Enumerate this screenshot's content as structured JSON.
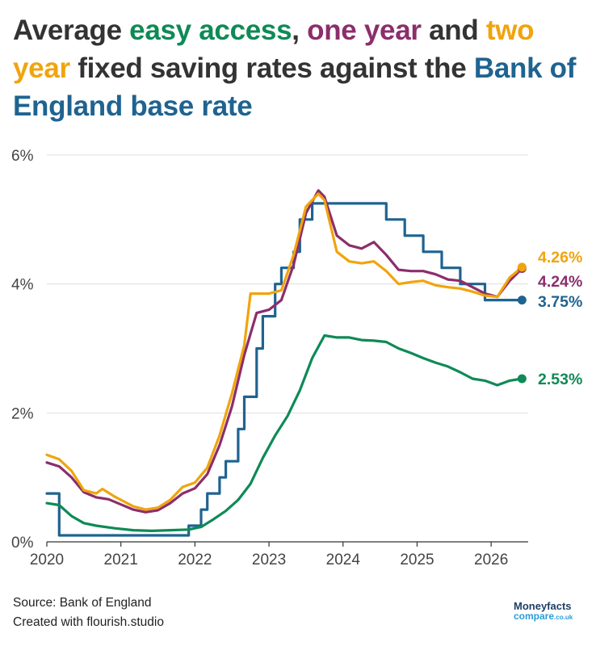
{
  "title": {
    "p1": "Average ",
    "easy": "easy access",
    "p2": ", ",
    "one": "one year",
    "p3": " and ",
    "two": "two year",
    "p4": " fixed saving rates against the ",
    "boe": "Bank of England base rate"
  },
  "colors": {
    "easy": "#0f8a56",
    "one": "#8c2e6b",
    "two": "#f0a40e",
    "boe": "#1f6390",
    "text": "#333333",
    "grid": "#dddddd"
  },
  "chart_data": {
    "type": "line",
    "x_ticks": [
      "2020",
      "2021",
      "2022",
      "2023",
      "2024",
      "2025",
      "2026"
    ],
    "y_ticks": [
      "0%",
      "2%",
      "4%",
      "6%"
    ],
    "xlim": [
      "2020-01",
      "2026-06"
    ],
    "ylim": [
      0,
      6
    ],
    "series": [
      {
        "key": "boe",
        "step": true,
        "end_label": "3.75%",
        "points": [
          [
            "2020-01",
            0.75
          ],
          [
            "2020-03",
            0.75
          ],
          [
            "2020-03",
            0.25
          ],
          [
            "2020-03",
            0.1
          ],
          [
            "2021-12",
            0.1
          ],
          [
            "2021-12",
            0.25
          ],
          [
            "2022-02",
            0.25
          ],
          [
            "2022-02",
            0.5
          ],
          [
            "2022-03",
            0.5
          ],
          [
            "2022-03",
            0.75
          ],
          [
            "2022-05",
            0.75
          ],
          [
            "2022-05",
            1.0
          ],
          [
            "2022-06",
            1.0
          ],
          [
            "2022-06",
            1.25
          ],
          [
            "2022-08",
            1.25
          ],
          [
            "2022-08",
            1.75
          ],
          [
            "2022-09",
            1.75
          ],
          [
            "2022-09",
            2.25
          ],
          [
            "2022-11",
            2.25
          ],
          [
            "2022-11",
            3.0
          ],
          [
            "2022-12",
            3.0
          ],
          [
            "2022-12",
            3.5
          ],
          [
            "2023-02",
            3.5
          ],
          [
            "2023-02",
            4.0
          ],
          [
            "2023-03",
            4.0
          ],
          [
            "2023-03",
            4.25
          ],
          [
            "2023-05",
            4.25
          ],
          [
            "2023-05",
            4.5
          ],
          [
            "2023-06",
            4.5
          ],
          [
            "2023-06",
            5.0
          ],
          [
            "2023-08",
            5.0
          ],
          [
            "2023-08",
            5.25
          ],
          [
            "2024-08",
            5.25
          ],
          [
            "2024-08",
            5.0
          ],
          [
            "2024-11",
            5.0
          ],
          [
            "2024-11",
            4.75
          ],
          [
            "2025-02",
            4.75
          ],
          [
            "2025-02",
            4.5
          ],
          [
            "2025-05",
            4.5
          ],
          [
            "2025-05",
            4.25
          ],
          [
            "2025-08",
            4.25
          ],
          [
            "2025-08",
            4.0
          ],
          [
            "2025-12",
            4.0
          ],
          [
            "2025-12",
            3.75
          ],
          [
            "2026-06",
            3.75
          ]
        ]
      },
      {
        "key": "easy",
        "end_label": "2.53%",
        "points": [
          [
            "2020-01",
            0.6
          ],
          [
            "2020-03",
            0.57
          ],
          [
            "2020-05",
            0.4
          ],
          [
            "2020-07",
            0.29
          ],
          [
            "2020-09",
            0.25
          ],
          [
            "2020-12",
            0.21
          ],
          [
            "2021-03",
            0.18
          ],
          [
            "2021-06",
            0.17
          ],
          [
            "2021-09",
            0.18
          ],
          [
            "2021-12",
            0.19
          ],
          [
            "2022-02",
            0.23
          ],
          [
            "2022-04",
            0.35
          ],
          [
            "2022-06",
            0.48
          ],
          [
            "2022-08",
            0.65
          ],
          [
            "2022-10",
            0.9
          ],
          [
            "2022-12",
            1.3
          ],
          [
            "2023-02",
            1.65
          ],
          [
            "2023-04",
            1.95
          ],
          [
            "2023-06",
            2.35
          ],
          [
            "2023-08",
            2.85
          ],
          [
            "2023-10",
            3.2
          ],
          [
            "2023-12",
            3.17
          ],
          [
            "2024-02",
            3.17
          ],
          [
            "2024-04",
            3.13
          ],
          [
            "2024-06",
            3.12
          ],
          [
            "2024-08",
            3.1
          ],
          [
            "2024-10",
            3.0
          ],
          [
            "2024-12",
            2.93
          ],
          [
            "2025-02",
            2.85
          ],
          [
            "2025-04",
            2.78
          ],
          [
            "2025-06",
            2.72
          ],
          [
            "2025-08",
            2.63
          ],
          [
            "2025-10",
            2.53
          ],
          [
            "2025-12",
            2.5
          ],
          [
            "2026-02",
            2.43
          ],
          [
            "2026-04",
            2.5
          ],
          [
            "2026-06",
            2.53
          ]
        ]
      },
      {
        "key": "one",
        "end_label": "4.24%",
        "points": [
          [
            "2020-01",
            1.23
          ],
          [
            "2020-03",
            1.17
          ],
          [
            "2020-05",
            1.0
          ],
          [
            "2020-07",
            0.77
          ],
          [
            "2020-09",
            0.69
          ],
          [
            "2020-11",
            0.66
          ],
          [
            "2021-01",
            0.58
          ],
          [
            "2021-03",
            0.5
          ],
          [
            "2021-05",
            0.46
          ],
          [
            "2021-07",
            0.49
          ],
          [
            "2021-09",
            0.6
          ],
          [
            "2021-11",
            0.75
          ],
          [
            "2022-01",
            0.83
          ],
          [
            "2022-03",
            1.05
          ],
          [
            "2022-05",
            1.5
          ],
          [
            "2022-07",
            2.1
          ],
          [
            "2022-09",
            2.9
          ],
          [
            "2022-11",
            3.55
          ],
          [
            "2023-01",
            3.6
          ],
          [
            "2023-03",
            3.75
          ],
          [
            "2023-05",
            4.3
          ],
          [
            "2023-07",
            5.1
          ],
          [
            "2023-09",
            5.45
          ],
          [
            "2023-10",
            5.35
          ],
          [
            "2023-12",
            4.75
          ],
          [
            "2024-02",
            4.6
          ],
          [
            "2024-04",
            4.55
          ],
          [
            "2024-06",
            4.65
          ],
          [
            "2024-08",
            4.45
          ],
          [
            "2024-10",
            4.22
          ],
          [
            "2024-12",
            4.2
          ],
          [
            "2025-02",
            4.2
          ],
          [
            "2025-04",
            4.15
          ],
          [
            "2025-06",
            4.07
          ],
          [
            "2025-08",
            4.05
          ],
          [
            "2025-10",
            3.95
          ],
          [
            "2025-12",
            3.85
          ],
          [
            "2026-02",
            3.8
          ],
          [
            "2026-04",
            4.05
          ],
          [
            "2026-06",
            4.24
          ]
        ]
      },
      {
        "key": "two",
        "end_label": "4.26%",
        "points": [
          [
            "2020-01",
            1.35
          ],
          [
            "2020-03",
            1.28
          ],
          [
            "2020-05",
            1.1
          ],
          [
            "2020-07",
            0.8
          ],
          [
            "2020-09",
            0.75
          ],
          [
            "2020-10",
            0.82
          ],
          [
            "2020-12",
            0.7
          ],
          [
            "2021-03",
            0.55
          ],
          [
            "2021-05",
            0.5
          ],
          [
            "2021-07",
            0.53
          ],
          [
            "2021-09",
            0.65
          ],
          [
            "2021-11",
            0.85
          ],
          [
            "2022-01",
            0.92
          ],
          [
            "2022-03",
            1.15
          ],
          [
            "2022-05",
            1.65
          ],
          [
            "2022-07",
            2.3
          ],
          [
            "2022-09",
            3.05
          ],
          [
            "2022-10",
            3.85
          ],
          [
            "2023-01",
            3.85
          ],
          [
            "2023-03",
            3.9
          ],
          [
            "2023-05",
            4.45
          ],
          [
            "2023-07",
            5.2
          ],
          [
            "2023-09",
            5.4
          ],
          [
            "2023-10",
            5.3
          ],
          [
            "2023-12",
            4.5
          ],
          [
            "2024-02",
            4.35
          ],
          [
            "2024-04",
            4.32
          ],
          [
            "2024-06",
            4.35
          ],
          [
            "2024-08",
            4.2
          ],
          [
            "2024-10",
            4.0
          ],
          [
            "2024-12",
            4.03
          ],
          [
            "2025-02",
            4.05
          ],
          [
            "2025-04",
            3.98
          ],
          [
            "2025-06",
            3.95
          ],
          [
            "2025-08",
            3.93
          ],
          [
            "2025-10",
            3.88
          ],
          [
            "2025-12",
            3.82
          ],
          [
            "2026-02",
            3.8
          ],
          [
            "2026-04",
            4.1
          ],
          [
            "2026-06",
            4.26
          ]
        ]
      }
    ]
  },
  "footer": {
    "source": "Source: Bank of England",
    "created": "Created with flourish.studio"
  },
  "logo": {
    "line1": "Moneyfacts",
    "line2": "compare",
    "line2_suffix": ".co.uk"
  }
}
